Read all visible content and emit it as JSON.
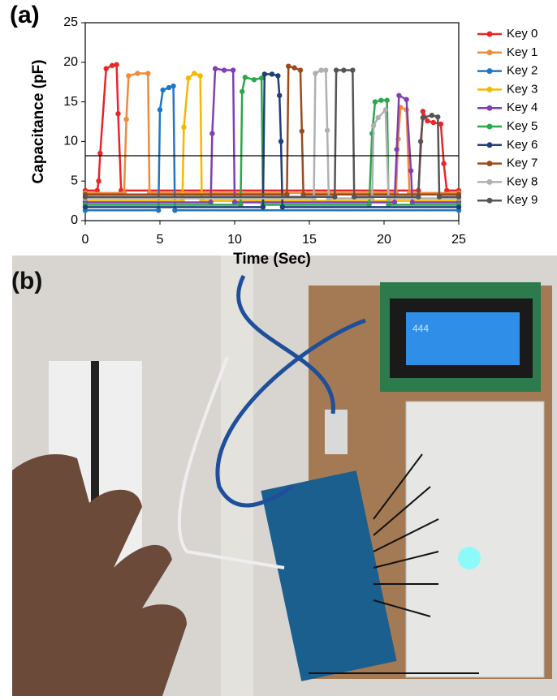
{
  "panels": {
    "a": "(a)",
    "b": "(b)"
  },
  "chart_data": {
    "type": "line",
    "xlabel": "Time (Sec)",
    "ylabel": "Capacitance (pF)",
    "xlim": [
      0,
      25
    ],
    "xticks": [
      0,
      5,
      10,
      15,
      20,
      25
    ],
    "ylim": [
      0,
      25
    ],
    "yticks": [
      0,
      5,
      10,
      15,
      20,
      25
    ],
    "threshold": 8.2,
    "series": [
      {
        "name": "Key 0",
        "color": "#e8262a",
        "x": [
          0,
          0.8,
          0.9,
          1.0,
          1.4,
          1.8,
          2.1,
          2.2,
          2.4,
          22.3,
          22.6,
          22.9,
          23.3,
          23.8,
          24.0,
          24.2,
          25
        ],
        "values": [
          3.8,
          3.8,
          5,
          8.5,
          19.2,
          19.6,
          19.7,
          13.5,
          3.8,
          3.8,
          13.8,
          12.6,
          12.4,
          12.2,
          7.2,
          3.8,
          3.8
        ]
      },
      {
        "name": "Key 1",
        "color": "#f08a3c",
        "x": [
          0,
          2.6,
          2.75,
          2.9,
          3.5,
          4.2,
          4.3,
          20.8,
          20.95,
          21.1,
          21.5,
          21.7,
          25
        ],
        "values": [
          3.5,
          3.5,
          12.8,
          18.3,
          18.6,
          18.6,
          3.5,
          3.5,
          10.3,
          14.3,
          14,
          3.5,
          3.5
        ]
      },
      {
        "name": "Key 2",
        "color": "#1f77c4",
        "x": [
          0,
          4.9,
          5.0,
          5.2,
          5.6,
          5.9,
          6.0,
          25
        ],
        "values": [
          1.3,
          1.3,
          14,
          16.5,
          16.8,
          17,
          1.3,
          1.3
        ]
      },
      {
        "name": "Key 3",
        "color": "#f5b800",
        "x": [
          0,
          6.5,
          6.6,
          6.9,
          7.3,
          7.7,
          7.8,
          25
        ],
        "values": [
          2.5,
          2.5,
          11.8,
          18,
          18.6,
          18.3,
          2.5,
          2.5
        ]
      },
      {
        "name": "Key 4",
        "color": "#7f3fb5",
        "x": [
          0,
          8.4,
          8.5,
          8.7,
          9.3,
          9.9,
          10.0,
          20.7,
          20.85,
          21.0,
          21.5,
          21.8,
          21.9,
          25
        ],
        "values": [
          2.3,
          2.3,
          11,
          19.2,
          19,
          19,
          2.3,
          2.3,
          9,
          15.8,
          15.3,
          6.3,
          2.3,
          2.3
        ]
      },
      {
        "name": "Key 5",
        "color": "#2aa84a",
        "x": [
          0,
          10.4,
          10.5,
          10.7,
          11.3,
          11.8,
          11.9,
          19.0,
          19.2,
          19.4,
          19.8,
          20.2,
          20.3,
          25
        ],
        "values": [
          2,
          2,
          16.3,
          18.1,
          17.8,
          18,
          2,
          2,
          11,
          15,
          15.2,
          15.2,
          2,
          2
        ]
      },
      {
        "name": "Key 6",
        "color": "#1f3f7a",
        "x": [
          0,
          11.9,
          12.0,
          12.5,
          12.9,
          13.0,
          13.1,
          13.2,
          25
        ],
        "values": [
          1.7,
          1.7,
          18.5,
          18.5,
          18.3,
          15.8,
          10,
          1.7,
          1.7
        ]
      },
      {
        "name": "Key 7",
        "color": "#9c4a1a",
        "x": [
          0,
          13.5,
          13.6,
          14.0,
          14.4,
          14.5,
          14.6,
          25
        ],
        "values": [
          3.3,
          3.3,
          19.5,
          19.3,
          19,
          11.3,
          3.3,
          3.3
        ]
      },
      {
        "name": "Key 8",
        "color": "#b0b0b0",
        "x": [
          0,
          15.3,
          15.4,
          15.8,
          16.1,
          16.2,
          16.3,
          19.2,
          19.3,
          19.6,
          20.1,
          20.3,
          25
        ],
        "values": [
          2.8,
          2.8,
          18.6,
          19,
          19,
          11.4,
          2.8,
          2.8,
          12,
          13,
          14,
          2.8,
          2.8
        ]
      },
      {
        "name": "Key 9",
        "color": "#555555",
        "x": [
          0,
          16.7,
          16.8,
          17.3,
          17.9,
          18.0,
          22.3,
          22.45,
          22.6,
          23.2,
          23.6,
          23.7,
          25
        ],
        "values": [
          3,
          3,
          19,
          19,
          19,
          3,
          3,
          10,
          13,
          13.3,
          13.1,
          3,
          3
        ]
      }
    ]
  },
  "photo": {
    "lcd_text": "444"
  }
}
